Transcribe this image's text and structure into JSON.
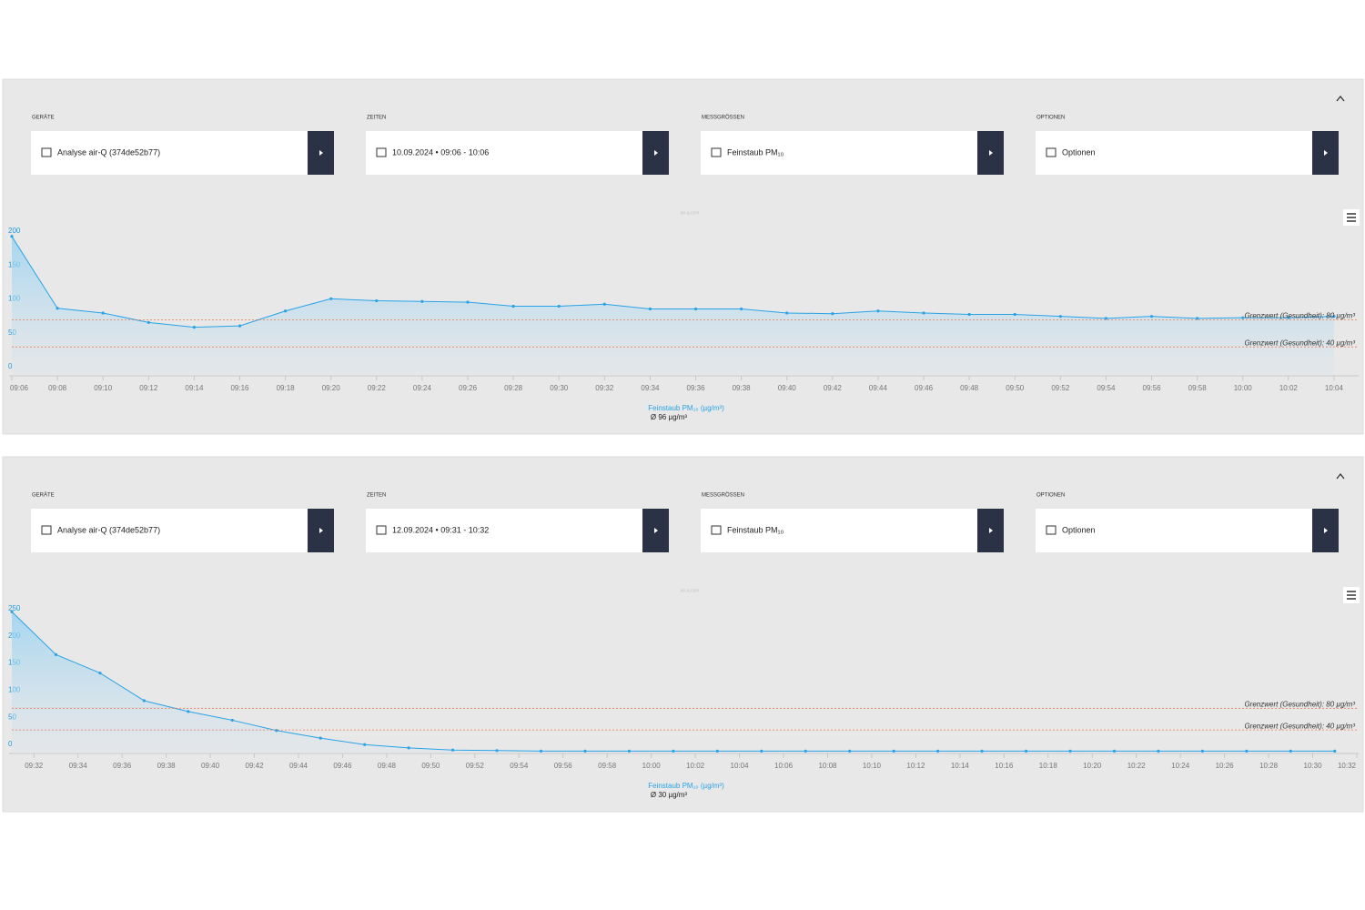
{
  "panels": [
    {
      "filters": [
        {
          "label": "GERÄTE",
          "value": "Analyse air-Q (374de52b77)"
        },
        {
          "label": "ZEITEN",
          "value": "10.09.2024 • 09:06 - 10:06"
        },
        {
          "label": "MESSGRÖSSEN",
          "value": "Feinstaub PM₁₀"
        },
        {
          "label": "OPTIONEN",
          "value": "Optionen"
        }
      ],
      "credits": "air-q.com",
      "chart": {
        "type": "area",
        "x": [
          "09:06",
          "09:08",
          "09:10",
          "09:12",
          "09:14",
          "09:16",
          "09:18",
          "09:20",
          "09:22",
          "09:24",
          "09:26",
          "09:28",
          "09:30",
          "09:32",
          "09:34",
          "09:36",
          "09:38",
          "09:40",
          "09:42",
          "09:44",
          "09:46",
          "09:48",
          "09:50",
          "09:52",
          "09:54",
          "09:56",
          "09:58",
          "10:00",
          "10:02",
          "10:04"
        ],
        "series": [
          {
            "name": "Feinstaub PM₁₀ (µg/m³)",
            "color": "#29a3e6",
            "values": [
              203,
              97,
              90,
              76,
              69,
              71,
              93,
              111,
              108,
              107,
              106,
              100,
              100,
              103,
              96,
              96,
              96,
              90,
              89,
              93,
              90,
              88,
              88,
              85,
              82,
              85,
              82,
              83,
              83,
              85
            ]
          }
        ],
        "xlim": [
          "09:06",
          "10:05"
        ],
        "xticks": [
          "09:06",
          "09:08",
          "09:10",
          "09:12",
          "09:14",
          "09:16",
          "09:18",
          "09:20",
          "09:22",
          "09:24",
          "09:26",
          "09:28",
          "09:30",
          "09:32",
          "09:34",
          "09:36",
          "09:38",
          "09:40",
          "09:42",
          "09:44",
          "09:46",
          "09:48",
          "09:50",
          "09:52",
          "09:54",
          "09:56",
          "09:58",
          "10:00",
          "10:02",
          "10:04"
        ],
        "ylim": [
          0,
          200
        ],
        "yticks": [
          0,
          50,
          100,
          150,
          200
        ],
        "plot_lines": [
          {
            "value": 80,
            "label": "Grenzwert (Gesundheit): 80 µg/m³"
          },
          {
            "value": 40,
            "label": "Grenzwert (Gesundheit): 40 µg/m³"
          }
        ],
        "average_label": "Ø 96 µg/m³"
      }
    },
    {
      "filters": [
        {
          "label": "GERÄTE",
          "value": "Analyse air-Q (374de52b77)"
        },
        {
          "label": "ZEITEN",
          "value": "12.09.2024 • 09:31 - 10:32"
        },
        {
          "label": "MESSGRÖSSEN",
          "value": "Feinstaub PM₁₀"
        },
        {
          "label": "OPTIONEN",
          "value": "Optionen"
        }
      ],
      "credits": "air-q.com",
      "chart": {
        "type": "area",
        "x": [
          "09:31",
          "09:33",
          "09:35",
          "09:37",
          "09:39",
          "09:41",
          "09:43",
          "09:45",
          "09:47",
          "09:49",
          "09:51",
          "09:53",
          "09:55",
          "09:57",
          "09:59",
          "10:01",
          "10:03",
          "10:05",
          "10:07",
          "10:09",
          "10:11",
          "10:13",
          "10:15",
          "10:17",
          "10:19",
          "10:21",
          "10:23",
          "10:25",
          "10:27",
          "10:29",
          "10:31"
        ],
        "series": [
          {
            "name": "Feinstaub PM₁₀ (µg/m³)",
            "color": "#29a3e6",
            "values": [
              258,
              179,
              145,
              94,
              74,
              58,
              39,
              25,
              13,
              7,
              3,
              2,
              1,
              1,
              1,
              1,
              1,
              1,
              1,
              1,
              1,
              1,
              1,
              1,
              1,
              1,
              1,
              1,
              1,
              1,
              1
            ]
          }
        ],
        "xlim": [
          "09:31",
          "10:32"
        ],
        "xticks": [
          "09:32",
          "09:34",
          "09:36",
          "09:38",
          "09:40",
          "09:42",
          "09:44",
          "09:46",
          "09:48",
          "09:50",
          "09:52",
          "09:54",
          "09:56",
          "09:58",
          "10:00",
          "10:02",
          "10:04",
          "10:06",
          "10:08",
          "10:10",
          "10:12",
          "10:14",
          "10:16",
          "10:18",
          "10:20",
          "10:22",
          "10:24",
          "10:26",
          "10:28",
          "10:30",
          "10:32"
        ],
        "ylim": [
          0,
          250
        ],
        "yticks": [
          0,
          50,
          100,
          150,
          200,
          250
        ],
        "plot_lines": [
          {
            "value": 80,
            "label": "Grenzwert (Gesundheit): 80 µg/m³"
          },
          {
            "value": 40,
            "label": "Grenzwert (Gesundheit): 40 µg/m³"
          }
        ],
        "average_label": "Ø 30 µg/m³"
      }
    }
  ]
}
